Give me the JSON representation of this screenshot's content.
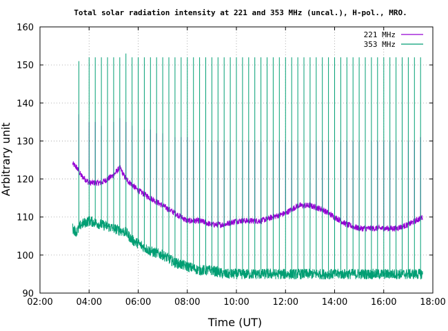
{
  "chart_data": {
    "type": "line",
    "title": "Total solar radiation intensity at 221 and 353 MHz (uncal.), H-pol., MRO.",
    "xlabel": "Time (UT)",
    "ylabel": "Arbitrary unit",
    "xlim": [
      "02:00",
      "18:00"
    ],
    "ylim": [
      90,
      160
    ],
    "xticks": [
      "02:00",
      "04:00",
      "06:00",
      "08:00",
      "10:00",
      "12:00",
      "14:00",
      "16:00",
      "18:00"
    ],
    "yticks": [
      90,
      100,
      110,
      120,
      130,
      140,
      150,
      160
    ],
    "grid": true,
    "legend_position": "top-right",
    "series": [
      {
        "name": "221 MHz",
        "color": "#9400d3",
        "baseline": [
          [
            "03:20",
            124
          ],
          [
            "03:30",
            123
          ],
          [
            "03:40",
            121
          ],
          [
            "04:00",
            119
          ],
          [
            "04:30",
            119
          ],
          [
            "05:00",
            121
          ],
          [
            "05:15",
            123
          ],
          [
            "05:30",
            120
          ],
          [
            "06:00",
            117
          ],
          [
            "06:30",
            115
          ],
          [
            "07:00",
            113
          ],
          [
            "07:30",
            111
          ],
          [
            "08:00",
            109
          ],
          [
            "08:30",
            109
          ],
          [
            "09:00",
            108
          ],
          [
            "09:30",
            108
          ],
          [
            "10:00",
            109
          ],
          [
            "10:30",
            109
          ],
          [
            "11:00",
            109
          ],
          [
            "11:30",
            110
          ],
          [
            "12:00",
            111
          ],
          [
            "12:30",
            113
          ],
          [
            "13:00",
            113
          ],
          [
            "13:30",
            112
          ],
          [
            "14:00",
            110
          ],
          [
            "14:30",
            108
          ],
          [
            "15:00",
            107
          ],
          [
            "15:30",
            107
          ],
          [
            "16:00",
            107
          ],
          [
            "16:30",
            107
          ],
          [
            "17:00",
            108
          ],
          [
            "17:35",
            110
          ]
        ],
        "spike_peaks": [
          [
            "03:35",
            137
          ],
          [
            "04:00",
            135
          ],
          [
            "04:15",
            135
          ],
          [
            "04:30",
            134
          ],
          [
            "04:45",
            135
          ],
          [
            "05:00",
            135
          ],
          [
            "05:15",
            136
          ],
          [
            "05:30",
            135
          ],
          [
            "05:45",
            134
          ],
          [
            "06:00",
            134
          ],
          [
            "06:15",
            133
          ],
          [
            "06:30",
            133
          ],
          [
            "06:45",
            132
          ],
          [
            "07:00",
            132
          ],
          [
            "07:15",
            132
          ],
          [
            "07:30",
            131
          ],
          [
            "07:45",
            131
          ],
          [
            "08:00",
            131
          ],
          [
            "08:15",
            130
          ],
          [
            "08:30",
            130
          ],
          [
            "08:45",
            130
          ],
          [
            "09:00",
            130
          ],
          [
            "09:15",
            130
          ],
          [
            "09:30",
            130
          ],
          [
            "09:45",
            130
          ],
          [
            "10:00",
            130
          ],
          [
            "10:15",
            130
          ],
          [
            "10:30",
            130
          ],
          [
            "10:45",
            130
          ],
          [
            "11:00",
            130
          ],
          [
            "11:15",
            130
          ],
          [
            "11:30",
            130
          ],
          [
            "11:45",
            130
          ],
          [
            "12:00",
            130
          ],
          [
            "12:15",
            130
          ],
          [
            "12:30",
            130
          ],
          [
            "12:45",
            130
          ],
          [
            "13:00",
            130
          ],
          [
            "13:15",
            130
          ],
          [
            "13:30",
            130
          ],
          [
            "13:45",
            130
          ],
          [
            "14:00",
            130
          ],
          [
            "14:15",
            130
          ],
          [
            "14:30",
            130
          ],
          [
            "14:45",
            130
          ],
          [
            "15:00",
            130
          ],
          [
            "15:15",
            130
          ],
          [
            "15:30",
            130
          ],
          [
            "15:45",
            130
          ],
          [
            "16:00",
            130
          ],
          [
            "16:15",
            130
          ],
          [
            "16:30",
            130
          ],
          [
            "16:45",
            130
          ],
          [
            "17:00",
            130
          ],
          [
            "17:15",
            130
          ],
          [
            "17:30",
            131
          ]
        ]
      },
      {
        "name": "353 MHz",
        "color": "#009e73",
        "baseline": [
          [
            "03:20",
            107
          ],
          [
            "03:30",
            106
          ],
          [
            "03:40",
            108
          ],
          [
            "04:00",
            109
          ],
          [
            "04:30",
            108
          ],
          [
            "05:00",
            107
          ],
          [
            "05:30",
            106
          ],
          [
            "05:45",
            104
          ],
          [
            "06:00",
            103
          ],
          [
            "06:30",
            101
          ],
          [
            "07:00",
            100
          ],
          [
            "07:30",
            98
          ],
          [
            "08:00",
            97
          ],
          [
            "08:30",
            96
          ],
          [
            "09:00",
            96
          ],
          [
            "09:30",
            95
          ],
          [
            "10:00",
            95
          ],
          [
            "10:30",
            95
          ],
          [
            "11:00",
            95
          ],
          [
            "11:30",
            95
          ],
          [
            "12:00",
            95
          ],
          [
            "12:30",
            95
          ],
          [
            "13:00",
            95
          ],
          [
            "13:30",
            95
          ],
          [
            "14:00",
            95
          ],
          [
            "14:30",
            95
          ],
          [
            "15:00",
            95
          ],
          [
            "15:30",
            95
          ],
          [
            "16:00",
            95
          ],
          [
            "16:30",
            95
          ],
          [
            "17:00",
            95
          ],
          [
            "17:35",
            95
          ]
        ],
        "spike_peaks": [
          [
            "03:35",
            151
          ],
          [
            "04:00",
            152
          ],
          [
            "04:15",
            152
          ],
          [
            "04:30",
            152
          ],
          [
            "04:45",
            152
          ],
          [
            "05:00",
            152
          ],
          [
            "05:15",
            152
          ],
          [
            "05:30",
            153
          ],
          [
            "05:45",
            152
          ],
          [
            "06:00",
            152
          ],
          [
            "06:15",
            152
          ],
          [
            "06:30",
            152
          ],
          [
            "06:45",
            152
          ],
          [
            "07:00",
            152
          ],
          [
            "07:15",
            152
          ],
          [
            "07:30",
            152
          ],
          [
            "07:45",
            152
          ],
          [
            "08:00",
            152
          ],
          [
            "08:15",
            152
          ],
          [
            "08:30",
            152
          ],
          [
            "08:45",
            152
          ],
          [
            "09:00",
            152
          ],
          [
            "09:15",
            152
          ],
          [
            "09:30",
            152
          ],
          [
            "09:45",
            152
          ],
          [
            "10:00",
            152
          ],
          [
            "10:15",
            152
          ],
          [
            "10:30",
            152
          ],
          [
            "10:45",
            152
          ],
          [
            "11:00",
            152
          ],
          [
            "11:15",
            152
          ],
          [
            "11:30",
            152
          ],
          [
            "11:45",
            152
          ],
          [
            "12:00",
            152
          ],
          [
            "12:15",
            152
          ],
          [
            "12:30",
            152
          ],
          [
            "12:45",
            152
          ],
          [
            "13:00",
            152
          ],
          [
            "13:15",
            152
          ],
          [
            "13:30",
            152
          ],
          [
            "13:45",
            152
          ],
          [
            "14:00",
            152
          ],
          [
            "14:15",
            152
          ],
          [
            "14:30",
            152
          ],
          [
            "14:45",
            152
          ],
          [
            "15:00",
            152
          ],
          [
            "15:15",
            152
          ],
          [
            "15:30",
            152
          ],
          [
            "15:45",
            152
          ],
          [
            "16:00",
            152
          ],
          [
            "16:15",
            152
          ],
          [
            "16:30",
            152
          ],
          [
            "16:45",
            152
          ],
          [
            "17:00",
            152
          ],
          [
            "17:15",
            152
          ],
          [
            "17:30",
            152
          ]
        ]
      }
    ]
  }
}
